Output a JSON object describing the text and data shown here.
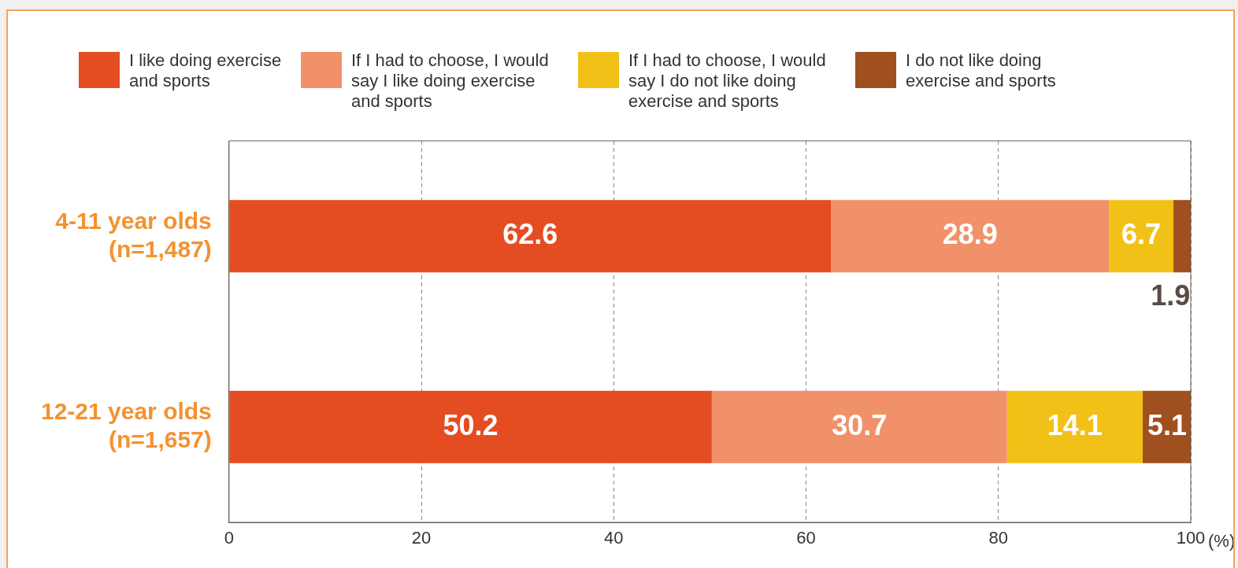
{
  "chart_data": {
    "type": "bar",
    "orientation": "horizontal",
    "stacked": true,
    "categories": [
      "4-11 year olds\n(n=1,487)",
      "12-21 year olds\n(n=1,657)"
    ],
    "series": [
      {
        "name": "I like doing exercise and sports",
        "color": "#e44c22",
        "values": [
          62.6,
          50.2
        ]
      },
      {
        "name": "If I had to choose, I would say I like doing exercise and sports",
        "color": "#f0916a",
        "values": [
          28.9,
          30.7
        ]
      },
      {
        "name": "If I had to choose, I would say I do not like doing exercise and sports",
        "color": "#f2c118",
        "values": [
          6.7,
          14.1
        ]
      },
      {
        "name": "I do not like doing exercise and sports",
        "color": "#a0501e",
        "values": [
          1.9,
          5.1
        ]
      }
    ],
    "xlim": [
      0,
      100
    ],
    "xticks": [
      0,
      20,
      40,
      60,
      80,
      100
    ],
    "xlabel": "(%)",
    "grid": "x",
    "legend": "top",
    "data_labels": true
  }
}
